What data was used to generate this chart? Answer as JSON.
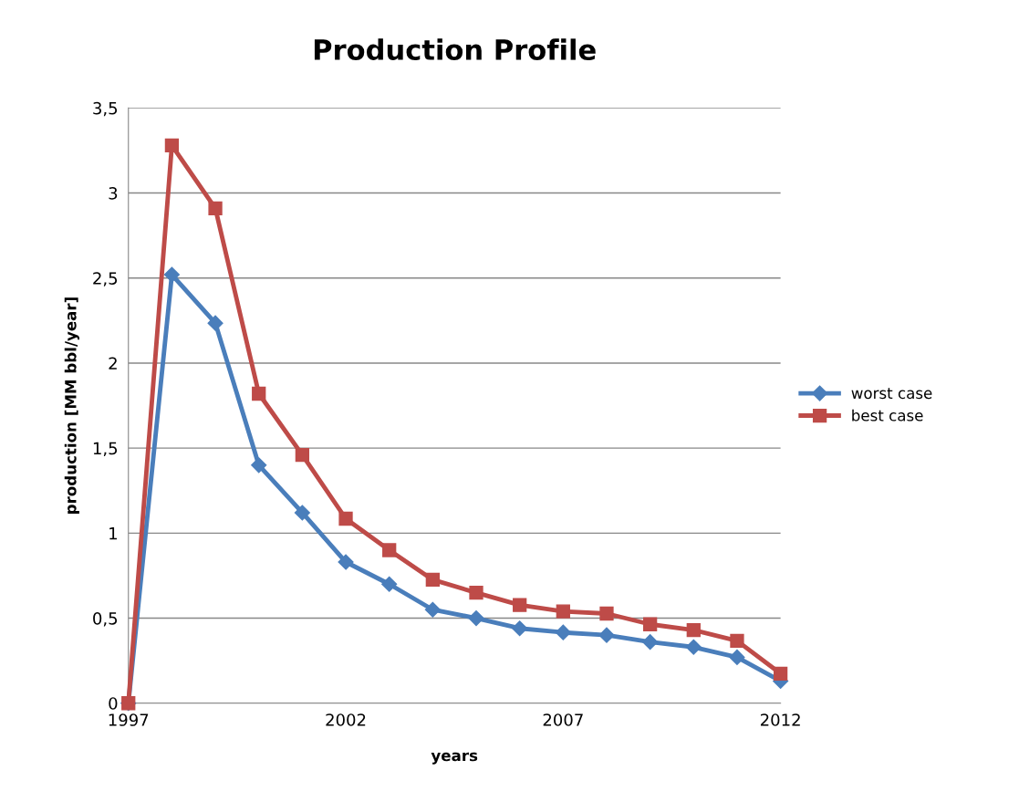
{
  "chart_data": {
    "type": "line",
    "title": "Production Profile",
    "xlabel": "years",
    "ylabel": "production [MM bbl/year]",
    "x": [
      1997,
      1998,
      1999,
      2000,
      2001,
      2002,
      2003,
      2004,
      2005,
      2006,
      2007,
      2008,
      2009,
      2010,
      2011,
      2012
    ],
    "series": [
      {
        "name": "worst case",
        "color": "#4a7ebb",
        "marker": "diamond",
        "values": [
          0,
          2.52,
          2.235,
          1.4,
          1.12,
          0.83,
          0.7,
          0.55,
          0.5,
          0.44,
          0.416,
          0.4,
          0.36,
          0.33,
          0.27,
          0.13
        ]
      },
      {
        "name": "best case",
        "color": "#be4b48",
        "marker": "square",
        "values": [
          0,
          3.28,
          2.91,
          1.82,
          1.46,
          1.085,
          0.9,
          0.726,
          0.65,
          0.577,
          0.54,
          0.527,
          0.464,
          0.43,
          0.367,
          0.174
        ]
      }
    ],
    "xlim": [
      1997,
      2012
    ],
    "xticks": [
      1997,
      2002,
      2007,
      2012
    ],
    "ylim": [
      0,
      3.5
    ],
    "yticks": [
      0,
      {
        "value": 0.5,
        "label": "0,5"
      },
      1,
      {
        "value": 1.5,
        "label": "1,5"
      },
      2,
      {
        "value": 2.5,
        "label": "2,5"
      },
      3,
      {
        "value": 3.5,
        "label": "3,5"
      }
    ],
    "grid": "y",
    "legend": "right",
    "line_style": "solid"
  }
}
